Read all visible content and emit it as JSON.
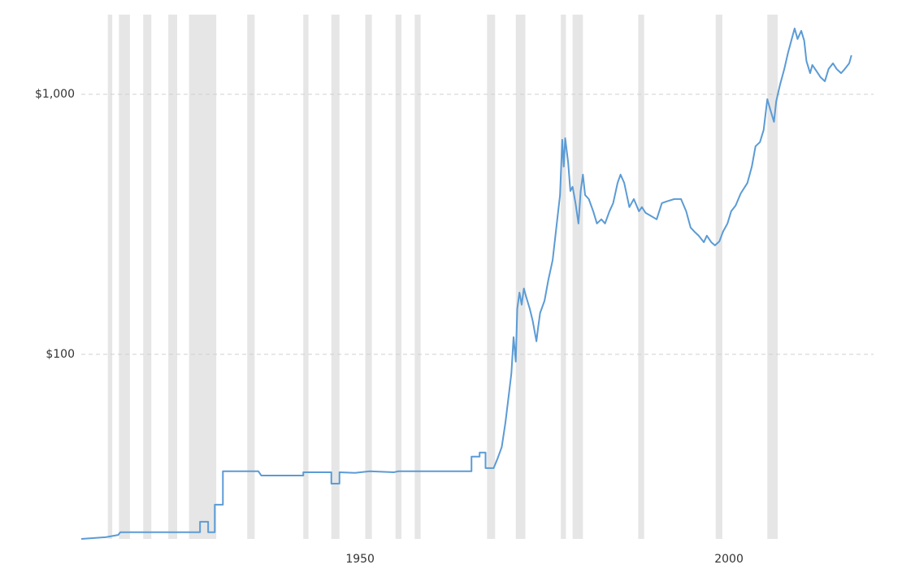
{
  "chart_data": {
    "type": "line",
    "log_scale": true,
    "grid": true,
    "color": "#5b9bd5",
    "band_color": "#e6e6e6",
    "xlim": [
      1912.2,
      2019.6
    ],
    "ylim": [
      19.5,
      1995
    ],
    "xticks": [
      1950,
      2000
    ],
    "yticks": [
      {
        "value": 100,
        "label": "$100"
      },
      {
        "value": 1000,
        "label": "$1,000"
      }
    ],
    "shaded_ranges": [
      [
        1915.8,
        1916.4
      ],
      [
        1917.3,
        1918.8
      ],
      [
        1920.6,
        1921.7
      ],
      [
        1924.0,
        1925.2
      ],
      [
        1926.8,
        1930.5
      ],
      [
        1934.7,
        1935.7
      ],
      [
        1942.3,
        1943.0
      ],
      [
        1946.1,
        1947.2
      ],
      [
        1950.7,
        1951.6
      ],
      [
        1954.8,
        1955.6
      ],
      [
        1957.4,
        1958.2
      ],
      [
        1967.2,
        1968.3
      ],
      [
        1971.1,
        1972.4
      ],
      [
        1977.2,
        1977.9
      ],
      [
        1978.8,
        1980.2
      ],
      [
        1987.7,
        1988.5
      ],
      [
        1998.2,
        1999.1
      ],
      [
        2005.2,
        2006.6
      ]
    ],
    "x": [
      1912.2,
      1915.5,
      1917.2,
      1917.5,
      1927.6,
      1928.3,
      1928.3,
      1929.4,
      1929.4,
      1930.3,
      1930.3,
      1931.4,
      1931.4,
      1936.2,
      1936.6,
      1942.3,
      1942.3,
      1946.1,
      1946.1,
      1947.2,
      1947.2,
      1949.3,
      1951.3,
      1954.6,
      1955.2,
      1965.1,
      1965.1,
      1966.2,
      1966.2,
      1967.0,
      1967.0,
      1968.1,
      1968.6,
      1969.2,
      1969.7,
      1970.1,
      1970.5,
      1970.8,
      1971.1,
      1971.3,
      1971.6,
      1971.9,
      1972.2,
      1972.5,
      1973.0,
      1973.4,
      1973.9,
      1974.1,
      1974.4,
      1975.0,
      1975.5,
      1976.1,
      1976.6,
      1977.1,
      1977.4,
      1977.6,
      1977.8,
      1978.2,
      1978.5,
      1978.8,
      1979.2,
      1979.6,
      1979.9,
      1980.2,
      1980.5,
      1981.0,
      1981.6,
      1982.1,
      1982.7,
      1983.2,
      1983.8,
      1984.3,
      1984.9,
      1985.3,
      1985.8,
      1986.5,
      1987.1,
      1987.8,
      1988.2,
      1988.7,
      1989.3,
      1990.2,
      1990.9,
      1991.5,
      1992.6,
      1993.5,
      1994.2,
      1994.8,
      1995.3,
      1995.9,
      1996.6,
      1997.0,
      1997.6,
      1998.1,
      1998.7,
      1999.2,
      1999.8,
      2000.3,
      2000.9,
      2001.6,
      2002.5,
      2003.1,
      2003.6,
      2004.2,
      2004.7,
      2005.2,
      2005.6,
      2006.1,
      2006.4,
      2006.9,
      2007.5,
      2008.0,
      2008.6,
      2008.9,
      2009.3,
      2009.8,
      2010.2,
      2010.5,
      2011.0,
      2011.3,
      2011.9,
      2012.4,
      2013.0,
      2013.5,
      2014.1,
      2014.6,
      2015.2,
      2015.7,
      2016.3,
      2016.6
    ],
    "values": [
      19.5,
      19.8,
      20.2,
      20.7,
      20.7,
      20.7,
      22.7,
      22.7,
      20.7,
      20.7,
      26.4,
      26.4,
      35.5,
      35.5,
      34.2,
      34.2,
      35.2,
      35.2,
      31.8,
      31.8,
      35.2,
      35.0,
      35.5,
      35.2,
      35.5,
      35.5,
      40.4,
      40.4,
      41.9,
      41.9,
      36.5,
      36.5,
      39.5,
      44.0,
      54.7,
      67.8,
      84.2,
      116.4,
      93.7,
      149.6,
      172.8,
      155.2,
      179.1,
      166.7,
      149.6,
      134.3,
      112.2,
      125.0,
      144.2,
      160.7,
      192.3,
      230.4,
      307.3,
      409.7,
      668.3,
      527.2,
      677.6,
      546.4,
      424.6,
      440.6,
      381.1,
      318.4,
      424.6,
      490.9,
      409.7,
      395.4,
      354.8,
      318.4,
      330.4,
      318.4,
      354.8,
      381.1,
      456.1,
      490.9,
      456.1,
      368.1,
      395.4,
      354.8,
      368.1,
      349.9,
      342.0,
      330.4,
      381.1,
      386.8,
      395.4,
      395.4,
      354.8,
      307.3,
      296.5,
      285.8,
      269.8,
      285.8,
      269.8,
      262.4,
      271.8,
      296.5,
      318.4,
      354.8,
      373.2,
      415.9,
      456.1,
      527.2,
      631.0,
      654.6,
      728.8,
      957.4,
      873.0,
      783.4,
      937.6,
      1081.8,
      1250.3,
      1442.1,
      1667.2,
      1790.6,
      1631.8,
      1753.6,
      1606.9,
      1343.6,
      1205.5,
      1295.9,
      1223.3,
      1164.1,
      1122.0,
      1250.3,
      1315.2,
      1250.3,
      1205.5,
      1250.3,
      1315.2,
      1412.5
    ]
  }
}
